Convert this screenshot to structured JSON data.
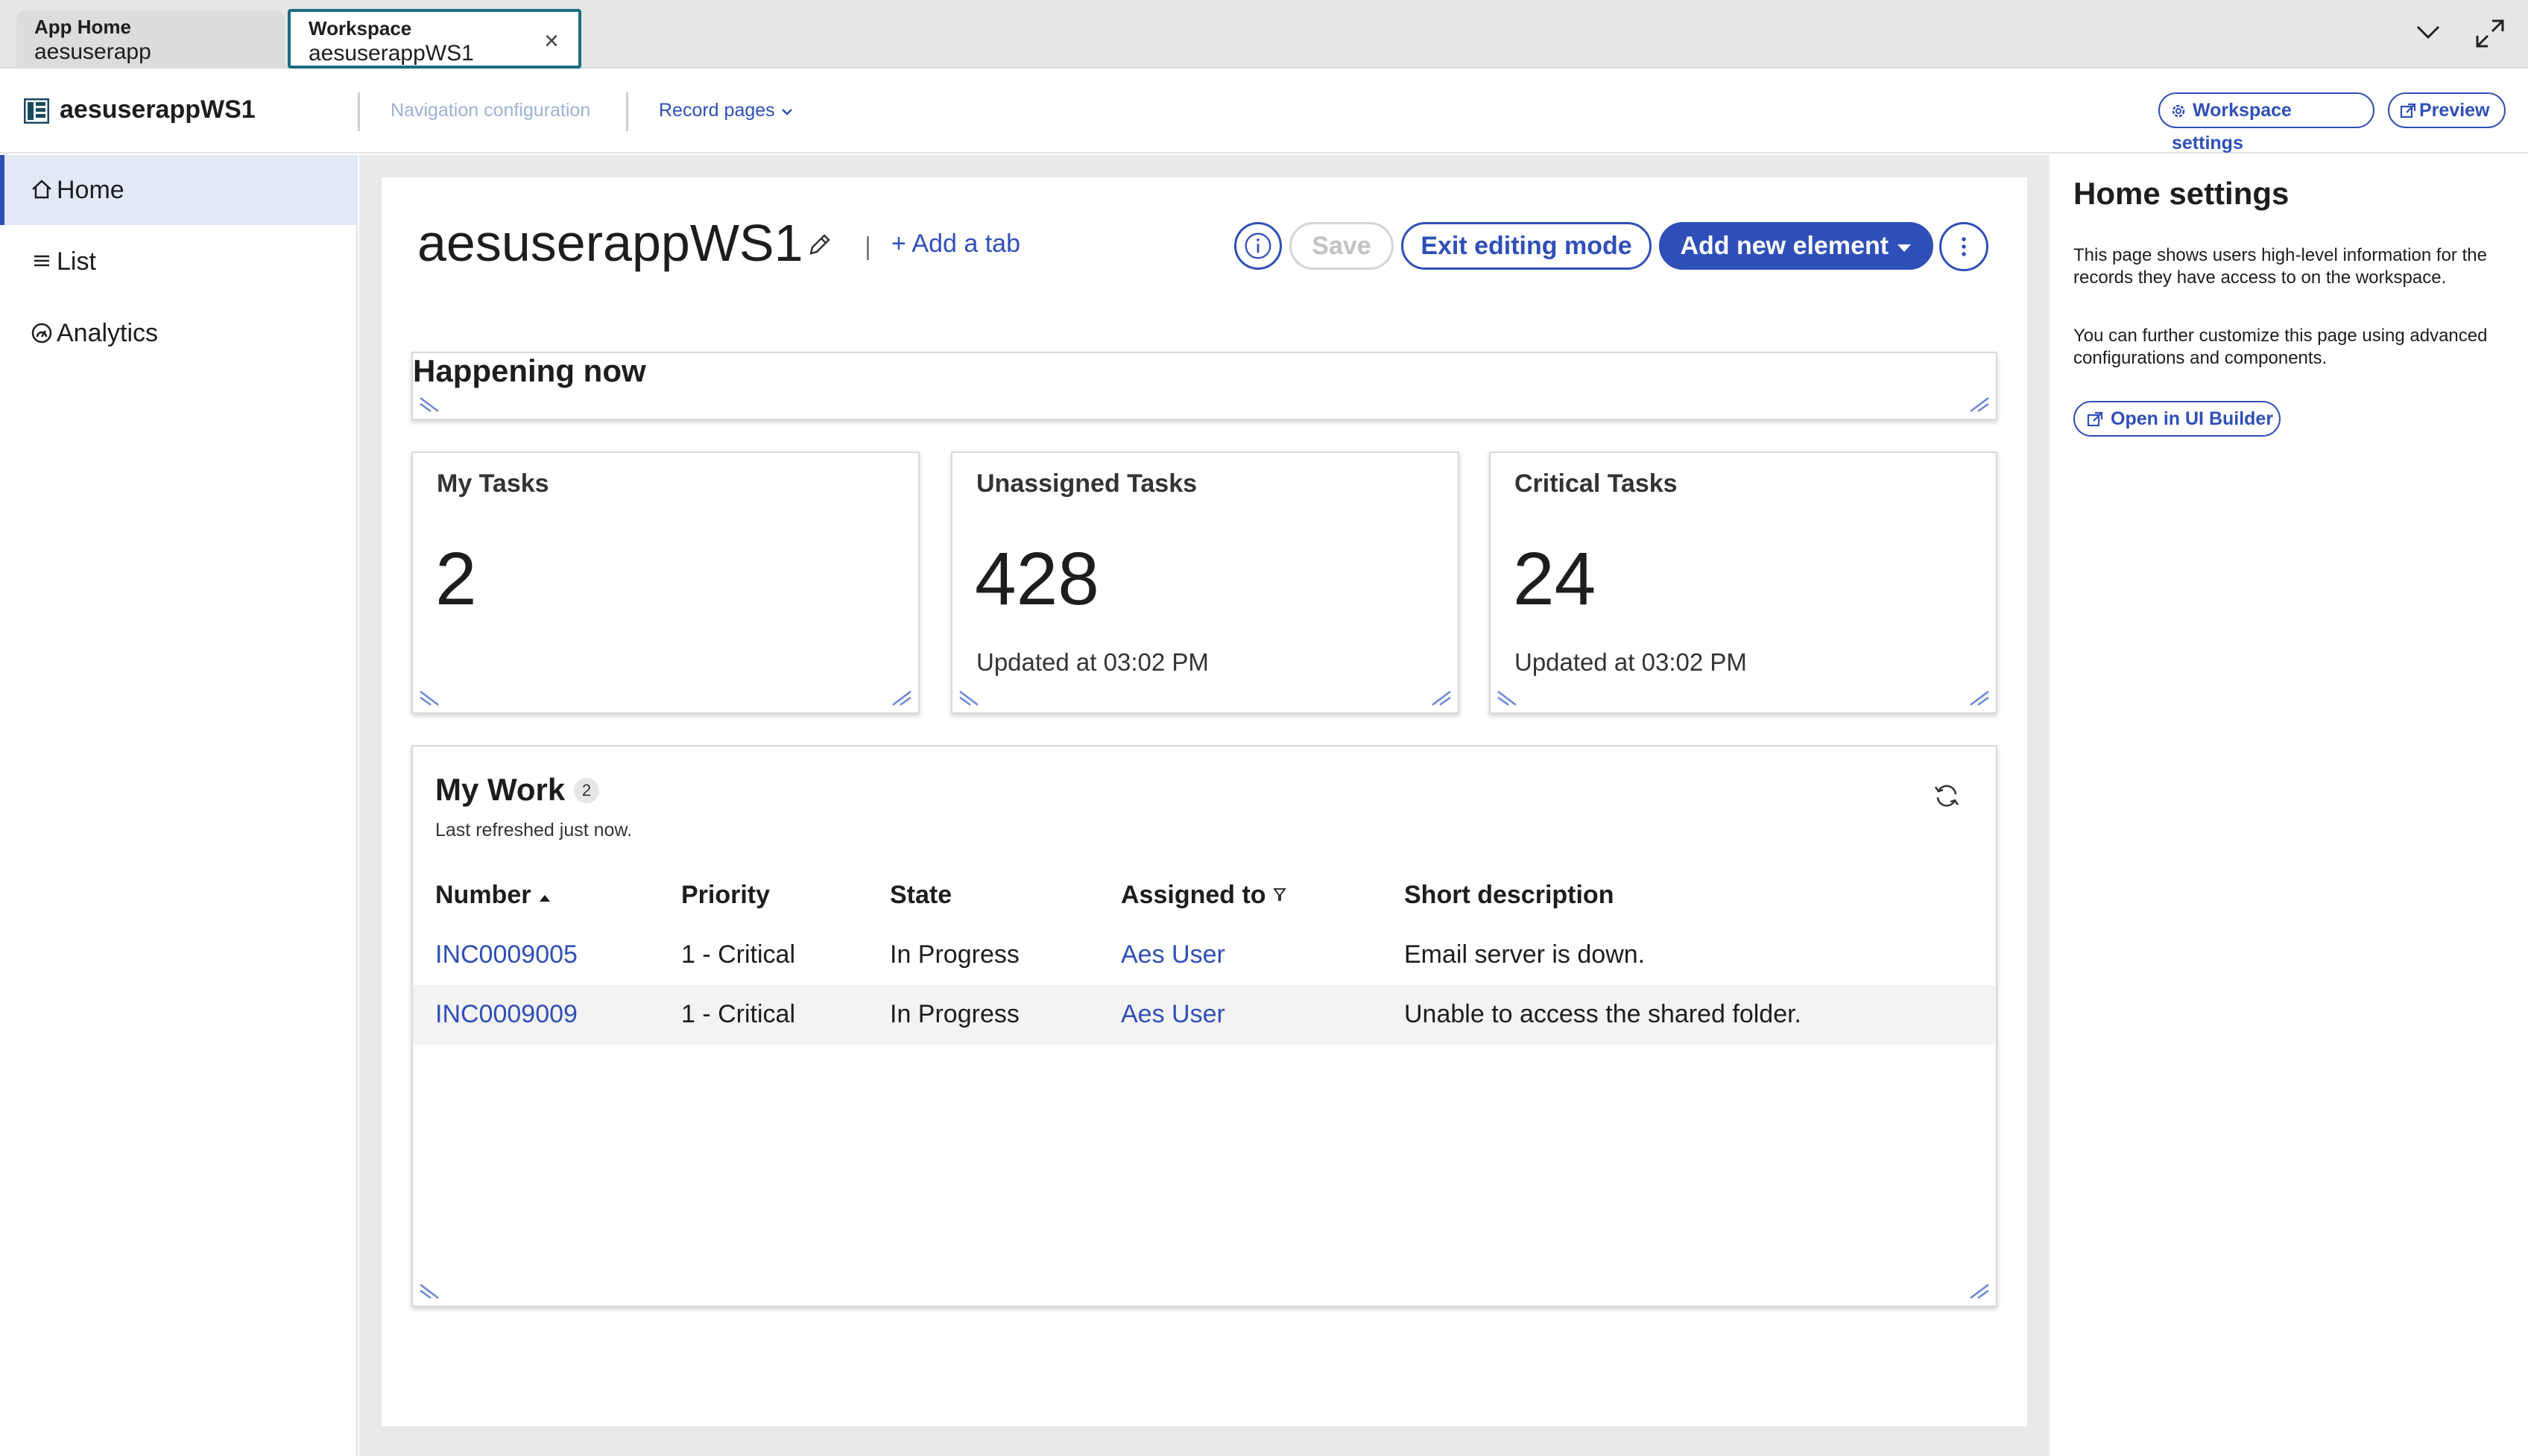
{
  "tabs": [
    {
      "title": "App Home",
      "subtitle": "aesuserapp"
    },
    {
      "title": "Workspace",
      "subtitle": "aesuserappWS1"
    }
  ],
  "icons": {
    "tab_close": "×",
    "expand": "expand-icon",
    "collapse": "chevron-down-icon"
  },
  "topbar": {
    "app_name": "aesuserappWS1",
    "nav_config": "Navigation configuration",
    "record_pages": "Record pages",
    "workspace_settings": "Workspace settings",
    "preview": "Preview"
  },
  "sidebar": {
    "items": [
      {
        "label": "Home",
        "icon": "home-icon",
        "active": true
      },
      {
        "label": "List",
        "icon": "list-icon",
        "active": false
      },
      {
        "label": "Analytics",
        "icon": "analytics-icon",
        "active": false
      }
    ]
  },
  "page": {
    "title": "aesuserappWS1",
    "add_tab": "+ Add a tab",
    "separator": "|",
    "save": "Save",
    "exit_editing": "Exit editing mode",
    "add_element": "Add new element"
  },
  "happening": {
    "title": "Happening now"
  },
  "stats": [
    {
      "label": "My Tasks",
      "value": "2",
      "updated": ""
    },
    {
      "label": "Unassigned Tasks",
      "value": "428",
      "updated": "Updated at 03:02 PM"
    },
    {
      "label": "Critical Tasks",
      "value": "24",
      "updated": "Updated at 03:02 PM"
    }
  ],
  "mywork": {
    "title": "My Work",
    "count": "2",
    "refreshed": "Last refreshed just now.",
    "columns": [
      "Number",
      "Priority",
      "State",
      "Assigned to",
      "Short description"
    ],
    "rows": [
      {
        "number": "INC0009005",
        "priority": "1 - Critical",
        "state": "In Progress",
        "assigned": "Aes User",
        "desc": "Email server is down."
      },
      {
        "number": "INC0009009",
        "priority": "1 - Critical",
        "state": "In Progress",
        "assigned": "Aes User",
        "desc": "Unable to access the shared folder."
      }
    ]
  },
  "right_panel": {
    "title": "Home settings",
    "text1": "This page shows users high-level information for the records they have access to on the workspace.",
    "text2": "You can further customize this page using advanced configurations and components.",
    "button": "Open in UI Builder"
  },
  "colors": {
    "primary": "#2f4fb8",
    "active_tab_border": "#1a6d80",
    "sidebar_active": "#e3e8f7"
  }
}
